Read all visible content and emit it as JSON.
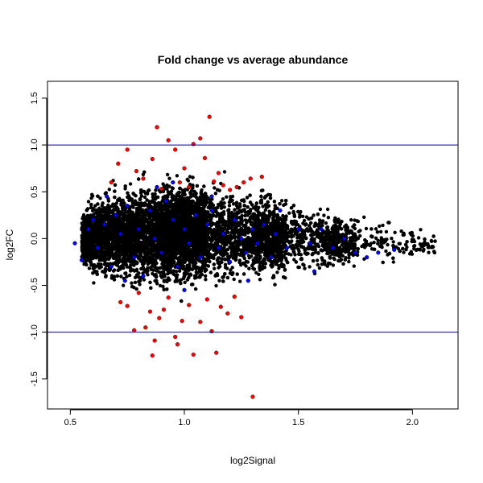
{
  "chart_data": {
    "type": "scatter",
    "title": "Fold change vs average abundance",
    "xlabel": "log2Signal",
    "ylabel": "log2FC",
    "xlim": [
      0.4,
      2.2
    ],
    "ylim": [
      -1.82,
      1.68
    ],
    "xticks": [
      "0.5",
      "1.0",
      "1.5",
      "2.0"
    ],
    "yticks": [
      "-1.5",
      "-1.0",
      "-0.5",
      "0.0",
      "0.5",
      "1.0",
      "1.5"
    ],
    "grid": false,
    "legend": "none",
    "reference_lines": [
      {
        "y": 1.0,
        "color": "#00008b"
      },
      {
        "y": -1.0,
        "color": "#00008b"
      }
    ],
    "colors": {
      "default": "#000000",
      "blue": "#0000ff",
      "red": "#ff0000"
    },
    "series": [
      {
        "color": "red",
        "points": [
          [
            0.68,
            0.6
          ],
          [
            0.71,
            0.8
          ],
          [
            0.75,
            0.95
          ],
          [
            0.79,
            0.72
          ],
          [
            0.82,
            0.64
          ],
          [
            0.86,
            0.85
          ],
          [
            0.9,
            0.53
          ],
          [
            0.93,
            1.05
          ],
          [
            0.96,
            0.95
          ],
          [
            0.98,
            0.6
          ],
          [
            1.0,
            0.75
          ],
          [
            1.02,
            0.55
          ],
          [
            1.04,
            1.01
          ],
          [
            1.07,
            1.07
          ],
          [
            1.09,
            0.86
          ],
          [
            1.11,
            1.3
          ],
          [
            1.13,
            0.61
          ],
          [
            1.15,
            0.7
          ],
          [
            1.17,
            0.57
          ],
          [
            1.2,
            0.52
          ],
          [
            1.23,
            0.55
          ],
          [
            1.26,
            0.6
          ],
          [
            1.29,
            0.64
          ],
          [
            1.34,
            0.66
          ],
          [
            0.88,
            1.19
          ],
          [
            0.72,
            -0.68
          ],
          [
            0.75,
            -0.72
          ],
          [
            0.78,
            -0.98
          ],
          [
            0.8,
            -0.58
          ],
          [
            0.83,
            -0.95
          ],
          [
            0.85,
            -0.78
          ],
          [
            0.86,
            -1.25
          ],
          [
            0.87,
            -1.09
          ],
          [
            0.89,
            -0.85
          ],
          [
            0.91,
            -0.76
          ],
          [
            0.93,
            -0.63
          ],
          [
            0.96,
            -1.05
          ],
          [
            0.97,
            -1.13
          ],
          [
            0.99,
            -0.88
          ],
          [
            1.02,
            -0.71
          ],
          [
            1.04,
            -1.24
          ],
          [
            1.07,
            -0.89
          ],
          [
            1.1,
            -0.65
          ],
          [
            1.12,
            -0.99
          ],
          [
            1.14,
            -1.22
          ],
          [
            1.16,
            -0.73
          ],
          [
            1.19,
            -0.8
          ],
          [
            1.22,
            -0.62
          ],
          [
            1.25,
            -0.84
          ],
          [
            1.3,
            -1.69
          ]
        ]
      },
      {
        "color": "blue",
        "points": [
          [
            0.55,
            -0.23
          ],
          [
            0.58,
            0.1
          ],
          [
            0.6,
            0.2
          ],
          [
            0.62,
            -0.1
          ],
          [
            0.65,
            0.15
          ],
          [
            0.68,
            -0.3
          ],
          [
            0.7,
            0.25
          ],
          [
            0.72,
            0.05
          ],
          [
            0.75,
            0.35
          ],
          [
            0.78,
            -0.2
          ],
          [
            0.8,
            0.1
          ],
          [
            0.82,
            -0.4
          ],
          [
            0.85,
            0.3
          ],
          [
            0.87,
            0.0
          ],
          [
            0.9,
            -0.15
          ],
          [
            0.92,
            0.4
          ],
          [
            0.95,
            0.2
          ],
          [
            0.97,
            -0.3
          ],
          [
            1.0,
            0.1
          ],
          [
            1.02,
            -0.05
          ],
          [
            1.05,
            0.25
          ],
          [
            1.07,
            -0.2
          ],
          [
            1.1,
            0.15
          ],
          [
            1.12,
            0.3
          ],
          [
            1.15,
            -0.1
          ],
          [
            1.17,
            0.05
          ],
          [
            1.2,
            -0.25
          ],
          [
            1.22,
            0.2
          ],
          [
            1.25,
            0.0
          ],
          [
            1.27,
            -0.15
          ],
          [
            1.3,
            0.1
          ],
          [
            1.32,
            -0.05
          ],
          [
            1.35,
            0.15
          ],
          [
            1.38,
            -0.2
          ],
          [
            1.4,
            0.05
          ],
          [
            1.45,
            -0.1
          ],
          [
            1.5,
            0.1
          ],
          [
            1.55,
            -0.05
          ],
          [
            1.6,
            0.1
          ],
          [
            1.65,
            -0.1
          ],
          [
            1.7,
            0.0
          ],
          [
            1.75,
            -0.15
          ],
          [
            1.8,
            -0.2
          ],
          [
            1.85,
            -0.15
          ],
          [
            1.92,
            -0.12
          ],
          [
            0.52,
            -0.05
          ],
          [
            0.66,
            0.45
          ],
          [
            0.74,
            -0.45
          ],
          [
            0.88,
            0.55
          ],
          [
            1.0,
            -0.55
          ],
          [
            1.12,
            0.45
          ],
          [
            1.28,
            -0.45
          ],
          [
            1.42,
            0.3
          ],
          [
            1.57,
            -0.35
          ],
          [
            0.95,
            0.6
          ]
        ]
      }
    ]
  }
}
